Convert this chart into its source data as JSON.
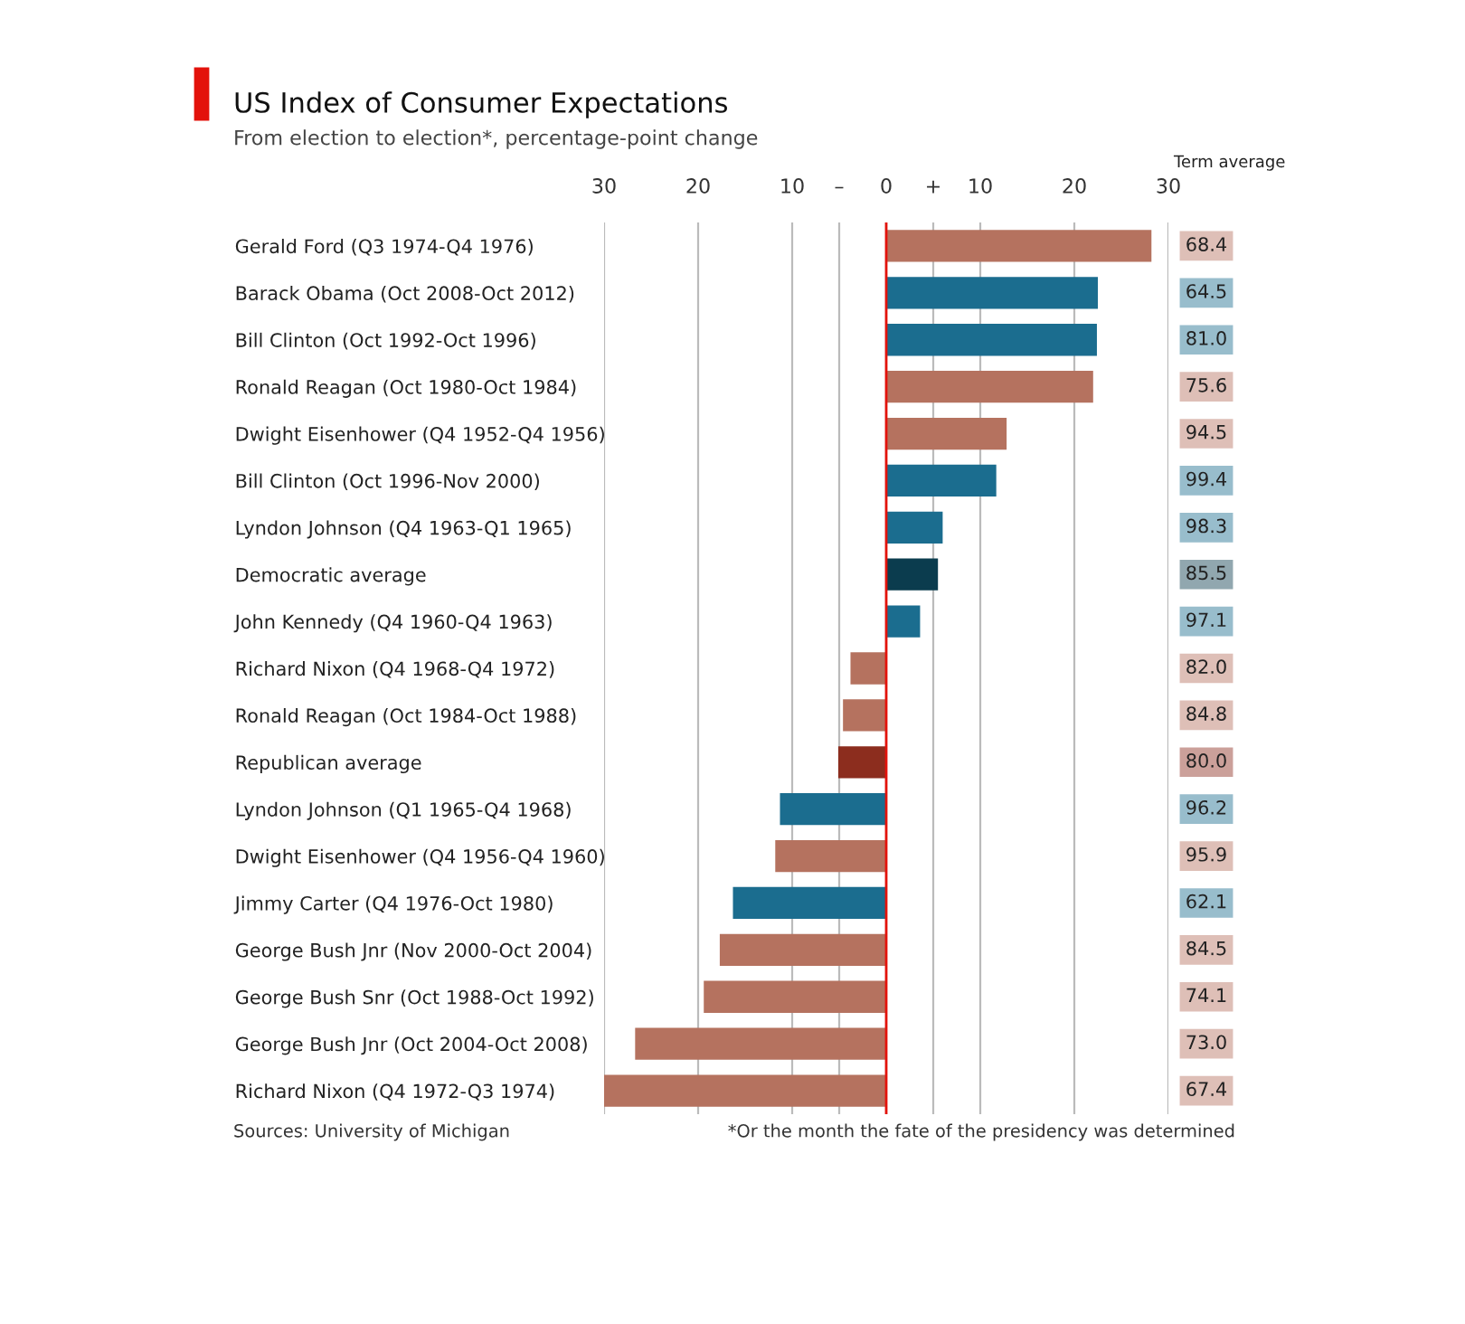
{
  "chart_data": {
    "type": "bar",
    "orientation": "horizontal",
    "title": "US Index of Consumer Expectations",
    "subtitle": "From election to election*, percentage-point change",
    "categories": [
      "Gerald Ford (Q3 1974-Q4 1976)",
      "Barack Obama (Oct 2008-Oct 2012)",
      "Bill Clinton (Oct 1992-Oct 1996)",
      "Ronald Reagan (Oct 1980-Oct 1984)",
      "Dwight Eisenhower (Q4 1952-Q4 1956)",
      "Bill Clinton (Oct 1996-Nov 2000)",
      "Lyndon Johnson (Q4 1963-Q1 1965)",
      "Democratic average",
      "John Kennedy (Q4 1960-Q4 1963)",
      "Richard Nixon (Q4 1968-Q4 1972)",
      "Ronald Reagan (Oct 1984-Oct 1988)",
      "Republican average",
      "Lyndon Johnson (Q1 1965-Q4 1968)",
      "Dwight Eisenhower (Q4 1956-Q4 1960)",
      "Jimmy Carter (Q4 1976-Oct 1980)",
      "George Bush Jnr (Nov 2000-Oct 2004)",
      "George Bush Snr (Oct 1988-Oct 1992)",
      "George Bush Jnr (Oct 2004-Oct 2008)",
      "Richard Nixon (Q4 1972-Q3 1974)"
    ],
    "values": [
      28.2,
      22.5,
      22.4,
      22.0,
      12.8,
      11.7,
      6.0,
      5.5,
      3.6,
      -3.8,
      -4.6,
      -5.1,
      -11.3,
      -11.8,
      -16.3,
      -17.7,
      -19.4,
      -26.7,
      -30.0
    ],
    "colors": [
      "#b5725f",
      "#1b6d8f",
      "#1b6d8f",
      "#b5725f",
      "#b5725f",
      "#1b6d8f",
      "#1b6d8f",
      "#0b3c4e",
      "#1b6d8f",
      "#b5725f",
      "#b5725f",
      "#8c2d1e",
      "#1b6d8f",
      "#b5725f",
      "#1b6d8f",
      "#b5725f",
      "#b5725f",
      "#b5725f",
      "#b5725f"
    ],
    "xlim": [
      -30,
      30
    ],
    "xticks": [
      {
        "value": -30,
        "label": "30"
      },
      {
        "value": -20,
        "label": "20"
      },
      {
        "value": -10,
        "label": "10"
      },
      {
        "value": -5,
        "label": "–"
      },
      0,
      {
        "value": 5,
        "label": "+"
      },
      10,
      20,
      30
    ],
    "grid": "x",
    "ref_lines": [
      {
        "axis": "x",
        "value": 0,
        "label": null,
        "color": "#e3120b"
      }
    ],
    "annotations": [
      "Term average",
      "68.4",
      "64.5",
      "81.0",
      "75.6",
      "94.5",
      "99.4",
      "98.3",
      "85.5",
      "97.1",
      "82.0",
      "84.8",
      "80.0",
      "96.2",
      "95.9",
      "62.1",
      "84.5",
      "74.1",
      "73.0",
      "67.4",
      "Sources: University of Michigan",
      "*Or the month the fate of the presidency was determined"
    ]
  }
}
